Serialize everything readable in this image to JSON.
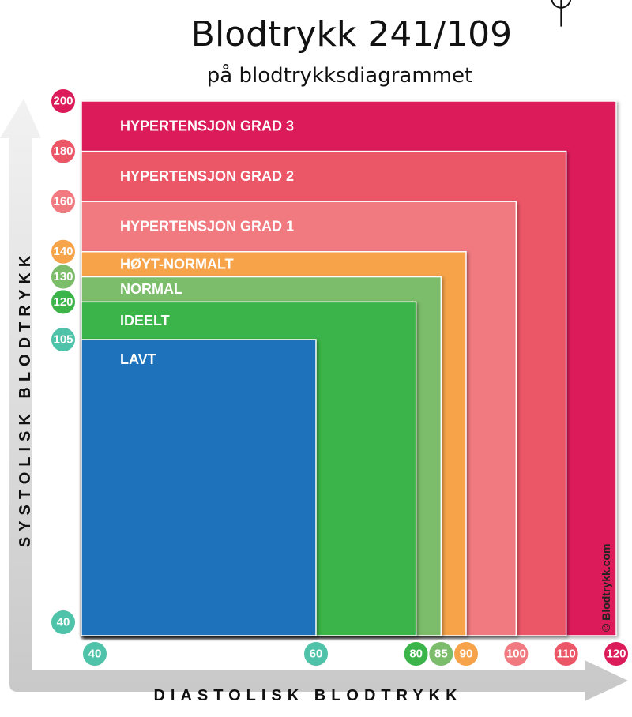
{
  "title": "Blodtrykk 241/109",
  "subtitle": "på blodtrykksdiagrammet",
  "y_axis_label": "SYSTOLISK BLODTRYKK",
  "x_axis_label": "DIASTOLISK BLODTRYKK",
  "copyright": "© Blodtrykk.com",
  "marker": {
    "systolic": 241,
    "diastolic": 109
  },
  "ylim": [
    40,
    200
  ],
  "xlim": [
    40,
    120
  ],
  "yticks": [
    {
      "value": 40,
      "color": "#4fc3a9"
    },
    {
      "value": 105,
      "color": "#4fc3a9"
    },
    {
      "value": 120,
      "color": "#3bb54a"
    },
    {
      "value": 130,
      "color": "#7cbd6b"
    },
    {
      "value": 140,
      "color": "#f6a34a"
    },
    {
      "value": 160,
      "color": "#f07a80"
    },
    {
      "value": 180,
      "color": "#ec5768"
    },
    {
      "value": 200,
      "color": "#dc1c5a"
    }
  ],
  "xticks": [
    {
      "value": 40,
      "color": "#4fc3a9"
    },
    {
      "value": 60,
      "color": "#4fc3a9"
    },
    {
      "value": 80,
      "color": "#3bb54a"
    },
    {
      "value": 85,
      "color": "#7cbd6b"
    },
    {
      "value": 90,
      "color": "#f6a34a"
    },
    {
      "value": 100,
      "color": "#f07a80"
    },
    {
      "value": 110,
      "color": "#ec5768"
    },
    {
      "value": 120,
      "color": "#dc1c5a"
    }
  ],
  "zones": [
    {
      "label": "HYPERTENSJON GRAD 3",
      "color": "#dc1c5a",
      "systolic": 200,
      "diastolic": 120
    },
    {
      "label": "HYPERTENSJON GRAD 2",
      "color": "#ec5768",
      "systolic": 180,
      "diastolic": 110
    },
    {
      "label": "HYPERTENSJON GRAD 1",
      "color": "#f07a80",
      "systolic": 160,
      "diastolic": 100
    },
    {
      "label": "HØYT-NORMALT",
      "color": "#f6a34a",
      "systolic": 140,
      "diastolic": 90
    },
    {
      "label": "NORMAL",
      "color": "#7cbd6b",
      "systolic": 130,
      "diastolic": 85
    },
    {
      "label": "IDEELT",
      "color": "#3bb54a",
      "systolic": 120,
      "diastolic": 80
    },
    {
      "label": "LAVT",
      "color": "#1d72bb",
      "systolic": 105,
      "diastolic": 60
    }
  ]
}
